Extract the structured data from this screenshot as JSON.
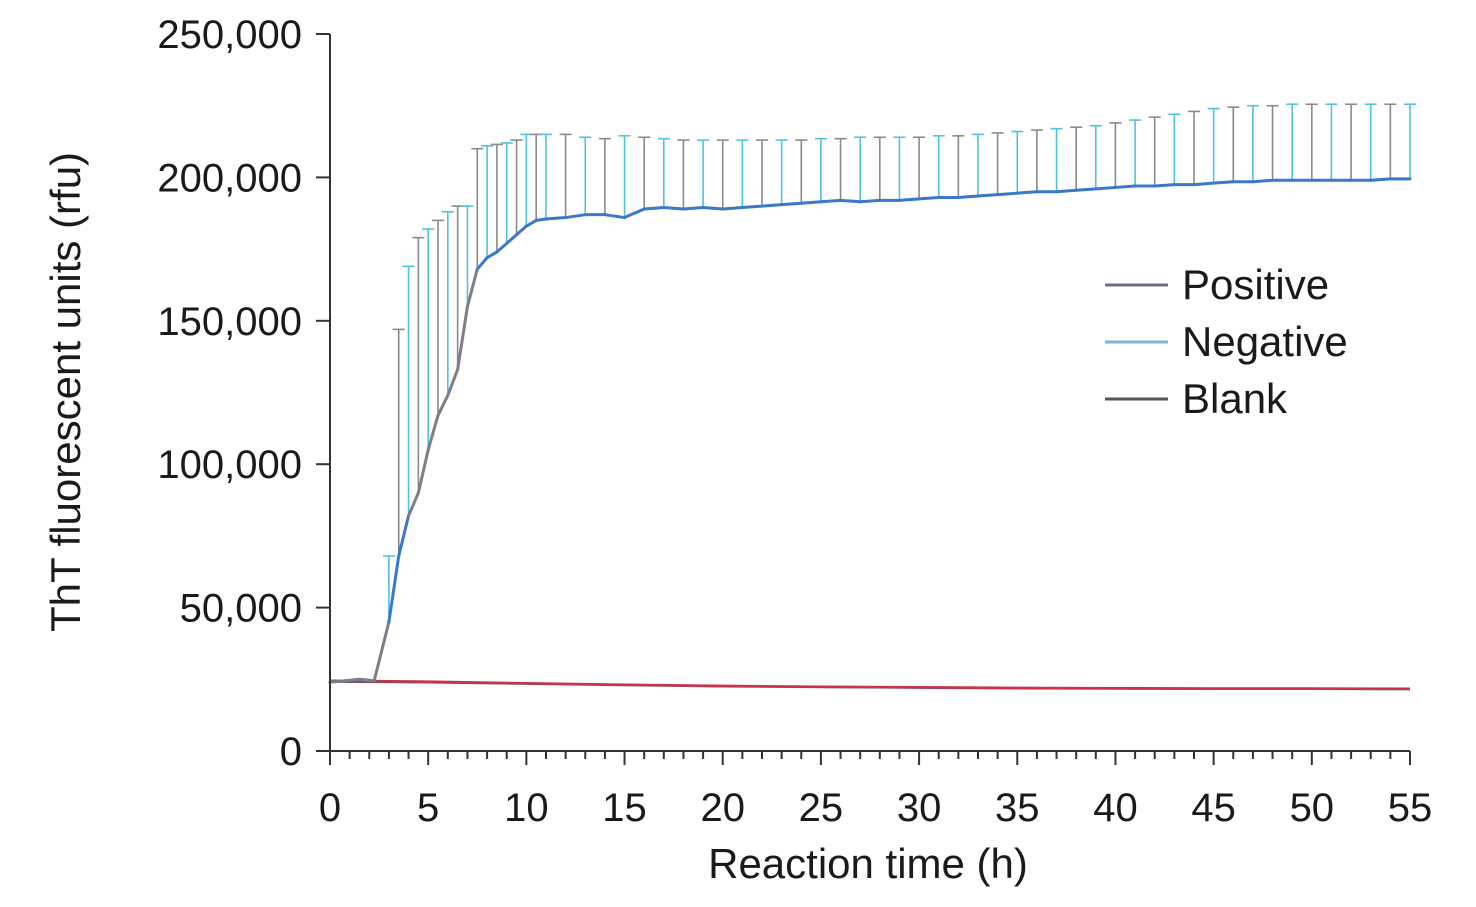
{
  "chart_data": {
    "type": "line",
    "title": "",
    "xlabel": "Reaction time (h)",
    "ylabel": "ThT fluorescent units (rfu)",
    "xlim": [
      0,
      55
    ],
    "ylim": [
      0,
      250000
    ],
    "x_ticks": [
      0,
      5,
      10,
      15,
      20,
      25,
      30,
      35,
      40,
      45,
      50,
      55
    ],
    "x_tick_labels": [
      "0",
      "5",
      "10",
      "15",
      "20",
      "25",
      "30",
      "35",
      "40",
      "45",
      "50",
      "55"
    ],
    "y_ticks": [
      0,
      50000,
      100000,
      150000,
      200000,
      250000
    ],
    "y_tick_labels": [
      "0",
      "50,000",
      "100,000",
      "150,000",
      "200,000",
      "250,000"
    ],
    "grid": false,
    "legend_position": "right",
    "legend": [
      "Positive",
      "Negative",
      "Blank"
    ],
    "colors": {
      "positive_line": "#3a78c8",
      "positive_line_early": "#7b7f88",
      "error_bar_cyan": "#4fc3e0",
      "error_bar_gray": "#8a8a8a",
      "negative_line": "#c8344a",
      "blank_line": "#555b66",
      "axis": "#333333",
      "legend_positive": "#6a7080",
      "legend_negative": "#7fb6d8",
      "legend_blank": "#505660"
    },
    "series": [
      {
        "name": "Positive",
        "x": [
          0,
          0.75,
          1.5,
          2.25,
          3,
          3.5,
          4,
          4.5,
          5,
          5.5,
          6,
          6.5,
          7,
          7.5,
          8,
          8.5,
          9,
          9.5,
          10,
          10.5,
          11,
          12,
          13,
          14,
          15,
          16,
          17,
          18,
          19,
          20,
          21,
          22,
          23,
          24,
          25,
          26,
          27,
          28,
          29,
          30,
          31,
          32,
          33,
          34,
          35,
          36,
          37,
          38,
          39,
          40,
          41,
          42,
          43,
          44,
          45,
          46,
          47,
          48,
          49,
          50,
          51,
          52,
          53,
          54,
          55
        ],
        "y": [
          24000,
          24500,
          25000,
          24500,
          45000,
          68000,
          82000,
          90000,
          105000,
          117000,
          124000,
          133000,
          155000,
          168000,
          172000,
          174000,
          177000,
          180000,
          183000,
          185000,
          185500,
          186000,
          187000,
          187000,
          186000,
          189000,
          189500,
          189000,
          189500,
          189000,
          189500,
          190000,
          190500,
          191000,
          191500,
          192000,
          191500,
          192000,
          192000,
          192500,
          193000,
          193000,
          193500,
          194000,
          194500,
          195000,
          195000,
          195500,
          196000,
          196500,
          197000,
          197000,
          197500,
          197500,
          198000,
          198500,
          198500,
          199000,
          199000,
          199000,
          199000,
          199000,
          199000,
          199500,
          199500
        ],
        "error_upper": [
          null,
          null,
          null,
          null,
          68000,
          147000,
          169000,
          179000,
          182000,
          185000,
          188000,
          190000,
          190000,
          210000,
          211000,
          211500,
          212000,
          213000,
          215000,
          215000,
          215000,
          215000,
          214000,
          213500,
          214500,
          214000,
          213500,
          213000,
          213000,
          213000,
          213000,
          213000,
          213000,
          213000,
          213500,
          213500,
          214000,
          214000,
          214000,
          214000,
          214500,
          214500,
          215000,
          215500,
          216000,
          216500,
          217000,
          217500,
          218000,
          219000,
          220000,
          221000,
          222000,
          223000,
          224000,
          224500,
          225000,
          225000,
          225500,
          225500,
          225500,
          225500,
          225500,
          225500,
          225500
        ]
      },
      {
        "name": "Negative",
        "x": [
          0,
          5,
          10,
          15,
          20,
          25,
          30,
          35,
          40,
          45,
          50,
          55
        ],
        "y": [
          24500,
          24200,
          23600,
          23100,
          22700,
          22400,
          22200,
          22000,
          21900,
          21800,
          21800,
          21700
        ]
      },
      {
        "name": "Blank",
        "x": [
          0,
          5,
          10,
          15,
          20,
          25,
          30,
          35,
          40,
          45,
          50,
          55
        ],
        "y": [
          24200,
          24000,
          23500,
          23000,
          22600,
          22300,
          22100,
          21900,
          21800,
          21700,
          21700,
          21600
        ]
      }
    ]
  }
}
